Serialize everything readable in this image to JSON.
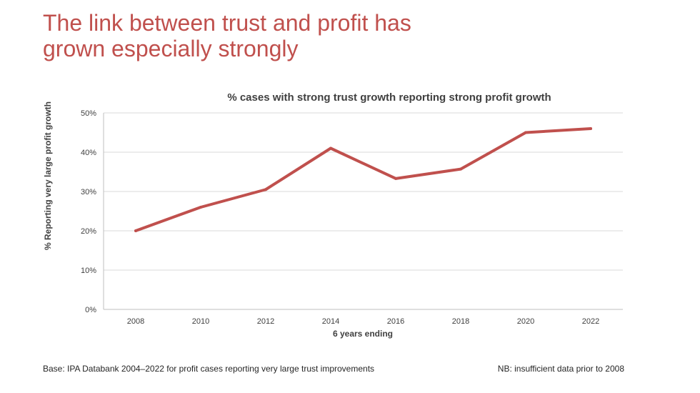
{
  "headline": {
    "line1": "The link between trust and profit has",
    "line2": "grown especially strongly"
  },
  "chart_data": {
    "type": "line",
    "title": "% cases with strong trust growth reporting strong profit growth",
    "xlabel": "6 years ending",
    "ylabel": "% Reporting very large profit growth",
    "categories": [
      "2008",
      "2010",
      "2012",
      "2014",
      "2016",
      "2018",
      "2020",
      "2022"
    ],
    "series": [
      {
        "values": [
          20,
          26,
          30.5,
          41,
          33.3,
          35.7,
          45,
          46
        ]
      }
    ],
    "y_ticks": [
      "0%",
      "10%",
      "20%",
      "30%",
      "40%",
      "50%"
    ],
    "ylim": [
      0,
      50
    ],
    "grid": true,
    "line_color": "#c0504d"
  },
  "footnotes": {
    "base": "Base: IPA Databank 2004–2022 for profit cases reporting very large trust improvements",
    "nb": "NB: insufficient data prior to 2008"
  }
}
